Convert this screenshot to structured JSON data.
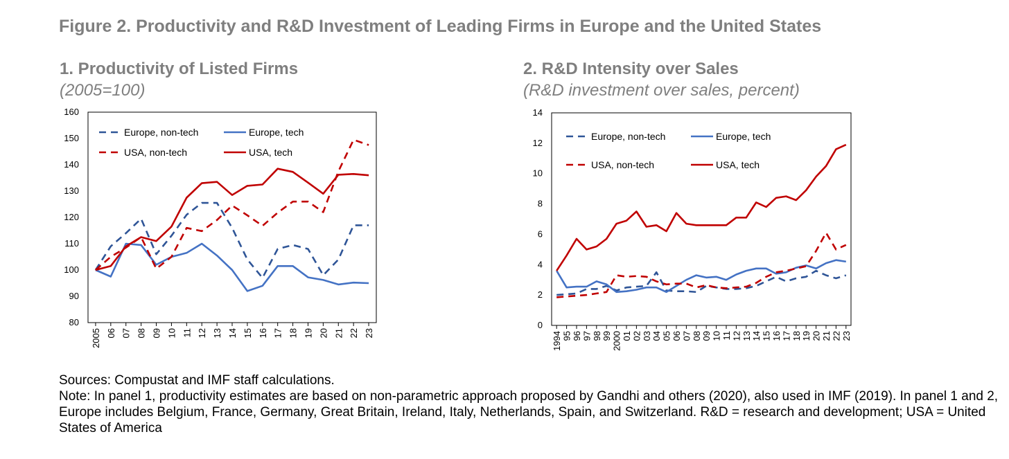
{
  "figure": {
    "title": "Figure 2. Productivity and R&D Investment of Leading Firms in Europe and the United States"
  },
  "colors": {
    "europe": "#4472c4",
    "europe_dash": "#2f5597",
    "usa": "#c00000",
    "title_gray": "#7f7f7f"
  },
  "chart_data": [
    {
      "type": "line",
      "title": "1. Productivity of Listed Firms",
      "subtitle": "(2005=100)",
      "xlabel": "",
      "ylabel": "",
      "categories": [
        "2005",
        "06",
        "07",
        "08",
        "09",
        "10",
        "11",
        "12",
        "13",
        "14",
        "15",
        "16",
        "17",
        "18",
        "19",
        "20",
        "21",
        "22",
        "23"
      ],
      "ylim": [
        80,
        160
      ],
      "yticks": [
        80,
        90,
        100,
        110,
        120,
        130,
        140,
        150,
        160
      ],
      "legend_position": "top-left",
      "series": [
        {
          "name": "Europe, non-tech",
          "color": "europe_dash",
          "dashed": true,
          "values": [
            100,
            109,
            114,
            119.5,
            106,
            113,
            121,
            125.5,
            125.5,
            116,
            104,
            97,
            108,
            109.5,
            108,
            98,
            104,
            117,
            117
          ]
        },
        {
          "name": "Europe, tech",
          "color": "europe",
          "dashed": false,
          "values": [
            100,
            97.5,
            110,
            109.5,
            102,
            105,
            106.5,
            110,
            105.5,
            100,
            92,
            94,
            101.5,
            101.5,
            97.2,
            96.2,
            94.5,
            95.2,
            95
          ]
        },
        {
          "name": "USA, non-tech",
          "color": "usa",
          "dashed": true,
          "values": [
            100,
            105,
            108.5,
            112.5,
            100.5,
            105,
            116,
            114.8,
            119,
            124.5,
            120.8,
            116.8,
            121.8,
            126,
            126,
            122,
            137.5,
            149.5,
            147.5
          ]
        },
        {
          "name": "USA, tech",
          "color": "usa",
          "dashed": false,
          "values": [
            100,
            101.5,
            109,
            112.5,
            111,
            116.5,
            127.5,
            133,
            133.5,
            128.5,
            132,
            132.5,
            138.5,
            137.3,
            133.2,
            129,
            136.2,
            136.5,
            136
          ]
        }
      ]
    },
    {
      "type": "line",
      "title": "2. R&D Intensity over Sales",
      "subtitle": "(R&D investment over sales, percent)",
      "xlabel": "",
      "ylabel": "",
      "categories": [
        "1994",
        "95",
        "96",
        "97",
        "98",
        "99",
        "2000",
        "01",
        "02",
        "03",
        "04",
        "05",
        "06",
        "07",
        "08",
        "09",
        "10",
        "11",
        "12",
        "13",
        "14",
        "15",
        "16",
        "17",
        "18",
        "19",
        "20",
        "21",
        "22",
        "23"
      ],
      "ylim": [
        0,
        14
      ],
      "yticks": [
        0,
        2,
        4,
        6,
        8,
        10,
        12,
        14
      ],
      "legend_position": "top-left",
      "series": [
        {
          "name": "Europe, non-tech",
          "color": "europe_dash",
          "dashed": true,
          "values": [
            2.0,
            2.05,
            2.1,
            2.4,
            2.4,
            2.6,
            2.3,
            2.5,
            2.55,
            2.6,
            3.5,
            2.3,
            2.25,
            2.25,
            2.2,
            2.6,
            2.5,
            2.4,
            2.4,
            2.45,
            2.6,
            2.9,
            3.2,
            2.9,
            3.1,
            3.2,
            3.6,
            3.3,
            3.1,
            3.3
          ]
        },
        {
          "name": "Europe, tech",
          "color": "europe",
          "dashed": false,
          "values": [
            3.6,
            2.5,
            2.55,
            2.55,
            2.9,
            2.7,
            2.2,
            2.25,
            2.35,
            2.5,
            2.5,
            2.2,
            2.6,
            3.0,
            3.3,
            3.15,
            3.2,
            3.0,
            3.35,
            3.6,
            3.75,
            3.75,
            3.4,
            3.5,
            3.8,
            3.95,
            3.75,
            4.1,
            4.3,
            4.2
          ]
        },
        {
          "name": "USA, non-tech",
          "color": "usa",
          "dashed": true,
          "values": [
            1.85,
            1.9,
            1.95,
            2.0,
            2.1,
            2.2,
            3.3,
            3.2,
            3.25,
            3.2,
            2.9,
            2.7,
            2.75,
            2.75,
            2.5,
            2.65,
            2.5,
            2.45,
            2.5,
            2.55,
            2.8,
            3.2,
            3.5,
            3.6,
            3.75,
            3.9,
            4.9,
            6.1,
            5.0,
            5.3
          ]
        },
        {
          "name": "USA, tech",
          "color": "usa",
          "dashed": false,
          "values": [
            3.6,
            4.6,
            5.7,
            5.0,
            5.2,
            5.7,
            6.7,
            6.9,
            7.5,
            6.5,
            6.6,
            6.2,
            7.4,
            6.7,
            6.6,
            6.6,
            6.6,
            6.6,
            7.1,
            7.1,
            8.1,
            7.8,
            8.4,
            8.5,
            8.25,
            8.9,
            9.8,
            10.5,
            11.6,
            11.9
          ]
        }
      ]
    }
  ],
  "notes": {
    "sources": "Sources: Compustat and IMF staff calculations.",
    "note": "Note: In panel 1, productivity estimates are based on non-parametric approach proposed by Gandhi and others (2020), also used in IMF (2019). In panel 1 and 2, Europe includes Belgium, France, Germany, Great Britain, Ireland, Italy, Netherlands, Spain, and Switzerland. R&D = research and development; USA = United States of America"
  }
}
